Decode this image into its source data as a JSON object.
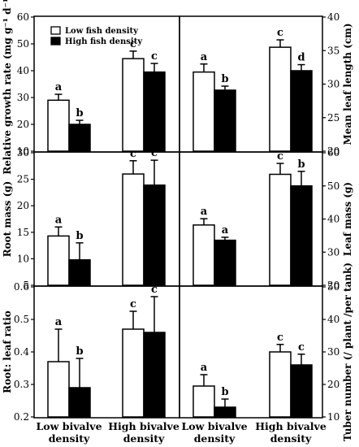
{
  "legend": {
    "low_label": "Low fish density",
    "high_label": "High fish density"
  },
  "colors": {
    "low": "#ffffff",
    "high": "#000000",
    "stroke": "#000000"
  },
  "x_groups": {
    "left": [
      "Low bivalve",
      "High bivalve"
    ],
    "right": [
      "Low bivalve",
      "High bivalve"
    ],
    "sub": "density"
  },
  "chart_data": [
    {
      "type": "bar",
      "categories": [
        "Low bivalve density",
        "High bivalve density"
      ],
      "ylabel": "Relative growth rate (mg g⁻¹ d⁻¹)",
      "ylim": [
        10,
        60
      ],
      "yticks": [
        10,
        20,
        30,
        40,
        50,
        60
      ],
      "axis_side": "left",
      "series": [
        {
          "name": "Low fish density",
          "values": [
            29,
            44.5
          ],
          "errors": [
            2.2,
            2.8
          ],
          "letters": [
            "a",
            "c"
          ]
        },
        {
          "name": "High fish density",
          "values": [
            20,
            39.5
          ],
          "errors": [
            1.5,
            3.2
          ],
          "letters": [
            "b",
            "c"
          ]
        }
      ]
    },
    {
      "type": "bar",
      "categories": [
        "Low bivalve density",
        "High bivalve density"
      ],
      "ylabel": "Mean leaf length (cm)",
      "ylim": [
        20,
        40
      ],
      "yticks": [
        20,
        25,
        30,
        35,
        40
      ],
      "axis_side": "right",
      "series": [
        {
          "name": "Low fish density",
          "values": [
            31.8,
            35.5
          ],
          "errors": [
            1.2,
            1.1
          ],
          "letters": [
            "a",
            "c"
          ]
        },
        {
          "name": "High fish density",
          "values": [
            29.1,
            32
          ],
          "errors": [
            0.6,
            0.9
          ],
          "letters": [
            "b",
            "d"
          ]
        }
      ]
    },
    {
      "type": "bar",
      "categories": [
        "Low bivalve density",
        "High bivalve density"
      ],
      "ylabel": "Root mass (g)",
      "ylim": [
        5,
        30
      ],
      "yticks": [
        5,
        10,
        15,
        20,
        25,
        30
      ],
      "axis_side": "left",
      "series": [
        {
          "name": "Low fish density",
          "values": [
            14.3,
            26
          ],
          "errors": [
            1.7,
            2.5
          ],
          "letters": [
            "a",
            "c"
          ]
        },
        {
          "name": "High fish density",
          "values": [
            9.8,
            23.9
          ],
          "errors": [
            3.2,
            4.7
          ],
          "letters": [
            "b",
            "c"
          ]
        }
      ]
    },
    {
      "type": "bar",
      "categories": [
        "Low bivalve density",
        "High bivalve density"
      ],
      "ylabel": "Leaf mass (g)",
      "ylim": [
        20,
        60
      ],
      "yticks": [
        20,
        30,
        40,
        50,
        60
      ],
      "axis_side": "right",
      "series": [
        {
          "name": "Low fish density",
          "values": [
            38.2,
            53.5
          ],
          "errors": [
            1.9,
            3.3
          ],
          "letters": [
            "a",
            "c"
          ]
        },
        {
          "name": "High fish density",
          "values": [
            33.6,
            50
          ],
          "errors": [
            0.9,
            4.4
          ],
          "letters": [
            "a",
            "b"
          ]
        }
      ]
    },
    {
      "type": "bar",
      "categories": [
        "Low bivalve density",
        "High bivalve density"
      ],
      "ylabel": "Root: leaf ratio",
      "ylim": [
        0.2,
        0.6
      ],
      "yticks": [
        0.2,
        0.3,
        0.4,
        0.5,
        0.6
      ],
      "axis_side": "left",
      "series": [
        {
          "name": "Low fish density",
          "values": [
            0.37,
            0.47
          ],
          "errors": [
            0.1,
            0.055
          ],
          "letters": [
            "a",
            "c"
          ]
        },
        {
          "name": "High fish density",
          "values": [
            0.29,
            0.46
          ],
          "errors": [
            0.09,
            0.11
          ],
          "letters": [
            "b",
            "c"
          ]
        }
      ]
    },
    {
      "type": "bar",
      "categories": [
        "Low bivalve density",
        "High bivalve density"
      ],
      "ylabel": "Tuber number (/ plant /per tank)",
      "ylim": [
        10,
        50
      ],
      "yticks": [
        10,
        20,
        30,
        40,
        50
      ],
      "axis_side": "right",
      "series": [
        {
          "name": "Low fish density",
          "values": [
            19.5,
            30
          ],
          "errors": [
            3.5,
            2.3
          ],
          "letters": [
            "a",
            "c"
          ]
        },
        {
          "name": "High fish density",
          "values": [
            13,
            26
          ],
          "errors": [
            2.5,
            3.3
          ],
          "letters": [
            "b",
            "c"
          ]
        }
      ]
    }
  ]
}
